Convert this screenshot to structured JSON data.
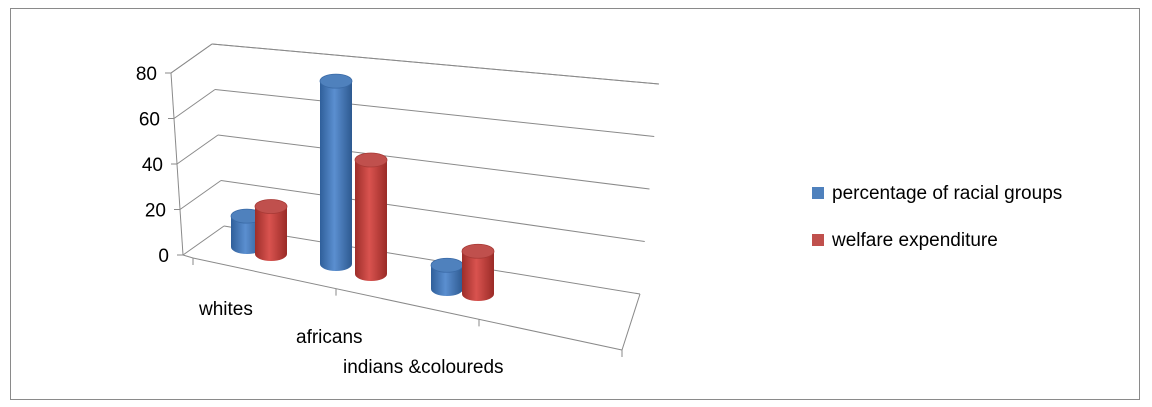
{
  "chart_data": {
    "type": "bar",
    "style": "3d-cylinder",
    "categories": [
      "whites",
      "africans",
      "indians &coloureds"
    ],
    "series": [
      {
        "name": "percentage of racial groups",
        "color": "#4f81bd",
        "values": [
          13,
          77,
          10
        ]
      },
      {
        "name": "welfare expenditure",
        "color": "#c0504d",
        "values": [
          20,
          48,
          18
        ]
      }
    ],
    "yticks": [
      "0",
      "20",
      "40",
      "60",
      "80"
    ],
    "ylim": [
      0,
      80
    ],
    "grid": true,
    "legend_position": "right"
  }
}
